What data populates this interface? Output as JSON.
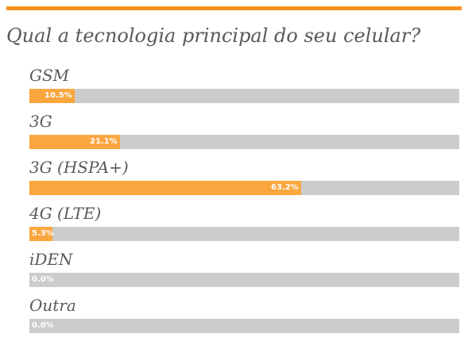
{
  "accent_color": "#f7931e",
  "bar_fill_color": "#faa63f",
  "bar_track_color": "#cccccc",
  "title": "Qual a tecnologia principal do seu celular?",
  "chart_data": {
    "type": "bar",
    "orientation": "horizontal",
    "title": "Qual a tecnologia principal do seu celular?",
    "xlim": [
      0,
      100
    ],
    "grid": false,
    "categories": [
      "GSM",
      "3G",
      "3G (HSPA+)",
      "4G (LTE)",
      "iDEN",
      "Outra"
    ],
    "values": [
      10.5,
      21.1,
      63.2,
      5.3,
      0.0,
      0.0
    ],
    "value_labels": [
      "10.5%",
      "21.1%",
      "63.2%",
      "5.3%",
      "0.0%",
      "0.0%"
    ]
  }
}
